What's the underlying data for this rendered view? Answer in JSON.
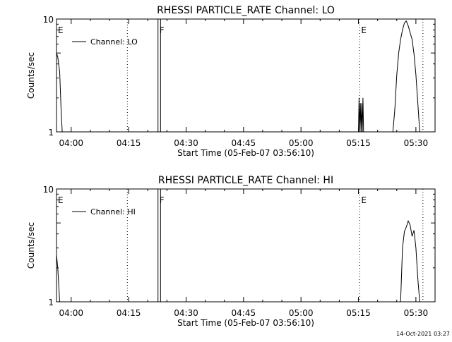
{
  "chart_data": [
    {
      "type": "line",
      "title": "RHESSI PARTICLE_RATE Channel: LO",
      "xlabel": "Start Time (05-Feb-07 03:56:10)",
      "ylabel": "Counts/sec",
      "xlim": [
        "03:56:10",
        "05:35:00"
      ],
      "ylim": [
        1,
        10
      ],
      "yscale": "log",
      "x_ticks": [
        "04:00",
        "04:15",
        "04:30",
        "04:45",
        "05:00",
        "05:15",
        "05:30"
      ],
      "y_ticks": [
        "1",
        "10"
      ],
      "legend": {
        "label": "Channel: LO",
        "placement": "top-left"
      },
      "markers": [
        {
          "label": "E",
          "time": "03:56:10",
          "style": "dotted"
        },
        {
          "label": "",
          "time": "04:14:40",
          "style": "dotted"
        },
        {
          "label": "F",
          "time": "04:22:40",
          "style": "solid"
        },
        {
          "label": "",
          "time": "04:23:20",
          "style": "solid"
        },
        {
          "label": "E",
          "time": "05:15:20",
          "style": "dotted"
        },
        {
          "label": "",
          "time": "05:31:50",
          "style": "dotted"
        }
      ],
      "series": [
        {
          "segments": [
            {
              "x": [
                "03:56:10",
                "03:56:30",
                "03:57:00",
                "03:57:20",
                "03:57:40"
              ],
              "y": [
                5.0,
                4.6,
                3.4,
                1.7,
                1.0
              ]
            },
            {
              "x": [
                "05:15:00",
                "05:15:10",
                "05:15:20",
                "05:15:30",
                "05:15:40",
                "05:15:50",
                "05:16:00",
                "05:16:10",
                "05:16:20"
              ],
              "y": [
                1.0,
                2.0,
                1.0,
                1.8,
                1.0,
                1.8,
                1.0,
                2.0,
                1.0
              ]
            },
            {
              "x": [
                "05:24:00",
                "05:24:30",
                "05:25:00",
                "05:25:30",
                "05:26:00",
                "05:26:30",
                "05:27:00",
                "05:27:30",
                "05:28:00",
                "05:28:30",
                "05:29:00",
                "05:29:30",
                "05:30:00",
                "05:30:30",
                "05:31:00"
              ],
              "y": [
                1.0,
                1.6,
                3.2,
                5.0,
                6.6,
                8.0,
                9.2,
                9.6,
                8.7,
                7.6,
                6.6,
                4.9,
                3.2,
                1.8,
                1.0
              ]
            }
          ]
        }
      ]
    },
    {
      "type": "line",
      "title": "RHESSI PARTICLE_RATE Channel: HI",
      "xlabel": "Start Time (05-Feb-07 03:56:10)",
      "ylabel": "Counts/sec",
      "xlim": [
        "03:56:10",
        "05:35:00"
      ],
      "ylim": [
        1,
        10
      ],
      "yscale": "log",
      "x_ticks": [
        "04:00",
        "04:15",
        "04:30",
        "04:45",
        "05:00",
        "05:15",
        "05:30"
      ],
      "y_ticks": [
        "1",
        "10"
      ],
      "legend": {
        "label": "Channel: HI",
        "placement": "top-left"
      },
      "markers": [
        {
          "label": "E",
          "time": "03:56:10",
          "style": "dotted"
        },
        {
          "label": "",
          "time": "04:14:40",
          "style": "dotted"
        },
        {
          "label": "F",
          "time": "04:22:40",
          "style": "solid"
        },
        {
          "label": "",
          "time": "04:23:20",
          "style": "solid"
        },
        {
          "label": "E",
          "time": "05:15:20",
          "style": "dotted"
        },
        {
          "label": "",
          "time": "05:31:50",
          "style": "dotted"
        }
      ],
      "series": [
        {
          "segments": [
            {
              "x": [
                "03:56:10",
                "03:56:30",
                "03:57:00"
              ],
              "y": [
                2.6,
                2.0,
                1.0
              ]
            },
            {
              "x": [
                "05:26:00",
                "05:26:30",
                "05:27:00",
                "05:27:30",
                "05:28:00",
                "05:28:30",
                "05:29:00",
                "05:29:30",
                "05:30:00",
                "05:30:30",
                "05:31:00"
              ],
              "y": [
                1.0,
                3.0,
                4.2,
                4.6,
                5.2,
                4.8,
                3.8,
                4.3,
                3.0,
                1.6,
                1.0
              ]
            }
          ]
        }
      ]
    }
  ],
  "footer": {
    "timestamp": "14-Oct-2021 03:27"
  }
}
